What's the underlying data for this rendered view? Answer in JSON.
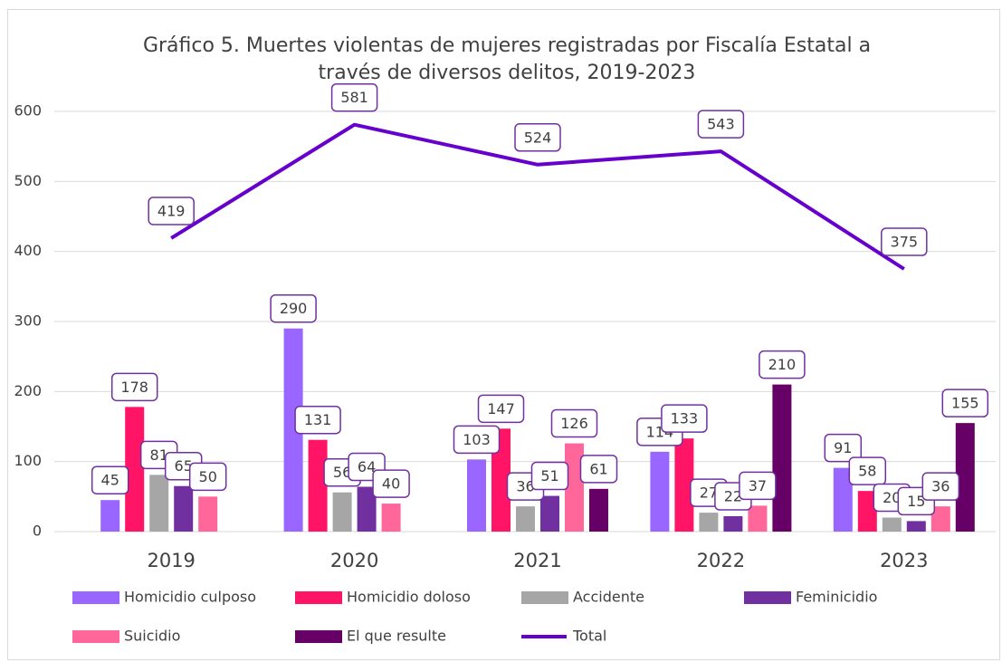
{
  "chart_data": {
    "type": "bar_line",
    "title": "Gráfico 5. Muertes violentas de mujeres registradas por Fiscalía Estatal a través de diversos delitos, 2019-2023",
    "categories": [
      "2019",
      "2020",
      "2021",
      "2022",
      "2023"
    ],
    "series": [
      {
        "name": "Homicidio culposo",
        "color": "#9966ff",
        "type": "bar",
        "values": [
          45,
          290,
          103,
          114,
          91
        ]
      },
      {
        "name": "Homicidio doloso",
        "color": "#ff1466",
        "type": "bar",
        "values": [
          178,
          131,
          147,
          133,
          58
        ]
      },
      {
        "name": "Accidente",
        "color": "#a6a6a6",
        "type": "bar",
        "values": [
          81,
          56,
          36,
          27,
          20
        ]
      },
      {
        "name": "Feminicidio",
        "color": "#7030a0",
        "type": "bar",
        "values": [
          65,
          64,
          51,
          22,
          15
        ]
      },
      {
        "name": "Suicidio",
        "color": "#ff6699",
        "type": "bar",
        "values": [
          50,
          40,
          126,
          37,
          36
        ]
      },
      {
        "name": "El que resulte",
        "color": "#660066",
        "type": "bar",
        "values": [
          null,
          null,
          61,
          210,
          155
        ]
      },
      {
        "name": "Total",
        "color": "#6600cc",
        "type": "line",
        "values": [
          419,
          581,
          524,
          543,
          375
        ]
      }
    ],
    "ylim": [
      0,
      600
    ],
    "yticks": [
      0,
      100,
      200,
      300,
      400,
      500,
      600
    ],
    "grid": true,
    "legend": "bottom"
  }
}
